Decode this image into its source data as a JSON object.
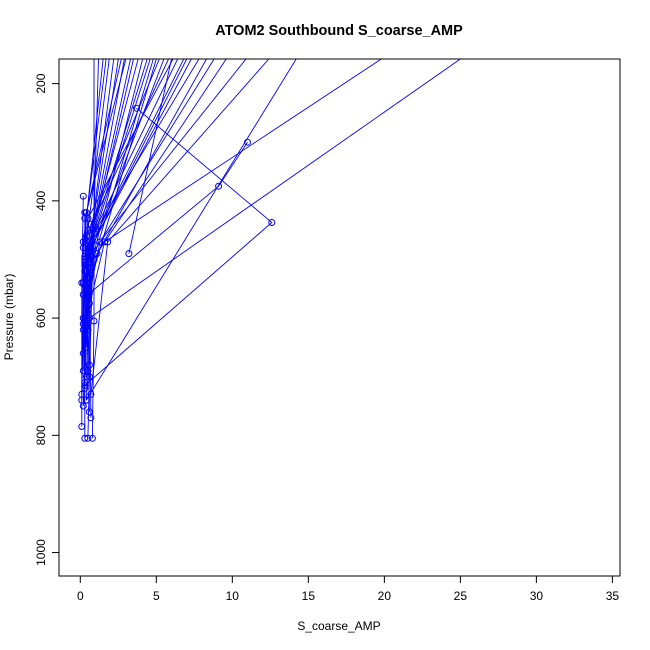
{
  "chart_data": {
    "type": "line",
    "title": "ATOM2 Southbound S_coarse_AMP",
    "xlabel": "S_coarse_AMP",
    "ylabel": "Pressure (mbar)",
    "xlim": [
      -1.4,
      35.5
    ],
    "ylim": [
      1040,
      158
    ],
    "y_reversed": true,
    "x_ticks": [
      0,
      5,
      10,
      15,
      20,
      25,
      30,
      35
    ],
    "y_ticks": [
      200,
      400,
      600,
      800,
      1000
    ],
    "grid": false,
    "legend": "none",
    "series_color": "#0000ff",
    "marker": "open-circle",
    "series": [
      {
        "x": [
          0.3,
          0.2,
          2.2
        ],
        "y": [
          720,
          560,
          158
        ]
      },
      {
        "x": [
          0.4,
          0.3,
          3.5
        ],
        "y": [
          700,
          520,
          158
        ]
      },
      {
        "x": [
          0.5,
          0.4,
          4.8
        ],
        "y": [
          690,
          540,
          158
        ]
      },
      {
        "x": [
          0.6,
          0.5,
          5.5
        ],
        "y": [
          680,
          500,
          158
        ]
      },
      {
        "x": [
          0.3,
          0.6,
          6.4
        ],
        "y": [
          710,
          470,
          158
        ]
      },
      {
        "x": [
          0.4,
          0.7,
          7.3
        ],
        "y": [
          650,
          480,
          158
        ]
      },
      {
        "x": [
          0.5,
          0.9,
          8.3
        ],
        "y": [
          620,
          500,
          158
        ]
      },
      {
        "x": [
          0.2,
          1.1,
          9.6
        ],
        "y": [
          610,
          490,
          158
        ]
      },
      {
        "x": [
          0.3,
          1.3,
          10.9
        ],
        "y": [
          600,
          470,
          158
        ]
      },
      {
        "x": [
          0.7,
          1.8,
          12.4
        ],
        "y": [
          730,
          470,
          158
        ]
      },
      {
        "x": [
          0.4,
          14.2
        ],
        "y": [
          740,
          158
        ]
      },
      {
        "x": [
          0.5,
          1.6,
          19.8
        ],
        "y": [
          590,
          470,
          158
        ]
      },
      {
        "x": [
          0.6,
          25.0
        ],
        "y": [
          600,
          158
        ]
      },
      {
        "x": [
          0.3,
          12.6,
          3.7
        ],
        "y": [
          715,
          437,
          242
        ]
      },
      {
        "x": [
          0.5,
          9.1,
          11.0
        ],
        "y": [
          560,
          375,
          300
        ]
      },
      {
        "x": [
          3.2,
          6.0
        ],
        "y": [
          490,
          158
        ]
      },
      {
        "x": [
          0.8,
          0.9,
          0.9
        ],
        "y": [
          805,
          605,
          158
        ]
      },
      {
        "x": [
          0.5,
          0.6,
          1.2
        ],
        "y": [
          805,
          700,
          158
        ]
      },
      {
        "x": [
          0.1,
          0.1,
          0.2
        ],
        "y": [
          785,
          540,
          392
        ]
      },
      {
        "x": [
          0.3,
          0.3
        ],
        "y": [
          805,
          420
        ]
      },
      {
        "x": [
          0.6,
          0.4,
          2.5
        ],
        "y": [
          760,
          510,
          158
        ]
      },
      {
        "x": [
          0.7,
          0.6,
          4.1
        ],
        "y": [
          770,
          520,
          158
        ]
      },
      {
        "x": [
          0.2,
          0.4,
          5.0
        ],
        "y": [
          750,
          560,
          158
        ]
      },
      {
        "x": [
          0.4,
          0.8,
          6.8
        ],
        "y": [
          740,
          470,
          158
        ]
      },
      {
        "x": [
          0.3,
          0.6,
          2.9
        ],
        "y": [
          640,
          480,
          158
        ]
      },
      {
        "x": [
          0.2,
          0.5,
          1.9
        ],
        "y": [
          660,
          450,
          158
        ]
      },
      {
        "x": [
          0.5,
          0.3,
          3.0
        ],
        "y": [
          580,
          430,
          158
        ]
      },
      {
        "x": [
          0.2,
          0.2,
          1.5
        ],
        "y": [
          690,
          480,
          158
        ]
      },
      {
        "x": [
          0.1,
          0.3,
          3.8
        ],
        "y": [
          730,
          500,
          158
        ]
      },
      {
        "x": [
          0.2,
          0.7,
          5.2
        ],
        "y": [
          540,
          440,
          158
        ]
      },
      {
        "x": [
          0.3,
          0.9,
          7.8
        ],
        "y": [
          545,
          455,
          158
        ]
      },
      {
        "x": [
          0.4,
          1.0,
          4.4
        ],
        "y": [
          520,
          445,
          158
        ]
      },
      {
        "x": [
          0.3,
          0.5,
          6.1
        ],
        "y": [
          505,
          430,
          158
        ]
      },
      {
        "x": [
          0.2,
          0.4,
          2.7
        ],
        "y": [
          600,
          420,
          158
        ]
      },
      {
        "x": [
          0.1,
          0.2,
          1.7
        ],
        "y": [
          740,
          470,
          158
        ]
      },
      {
        "x": [
          0.3,
          0.4,
          5.8
        ],
        "y": [
          495,
          460,
          158
        ]
      },
      {
        "x": [
          0.5,
          0.6,
          7.0
        ],
        "y": [
          530,
          485,
          158
        ]
      },
      {
        "x": [
          0.4,
          0.5,
          3.3
        ],
        "y": [
          560,
          490,
          158
        ]
      },
      {
        "x": [
          0.2,
          0.3,
          4.6
        ],
        "y": [
          620,
          510,
          158
        ]
      },
      {
        "x": [
          0.6,
          0.7,
          8.8
        ],
        "y": [
          575,
          495,
          158
        ]
      }
    ]
  }
}
